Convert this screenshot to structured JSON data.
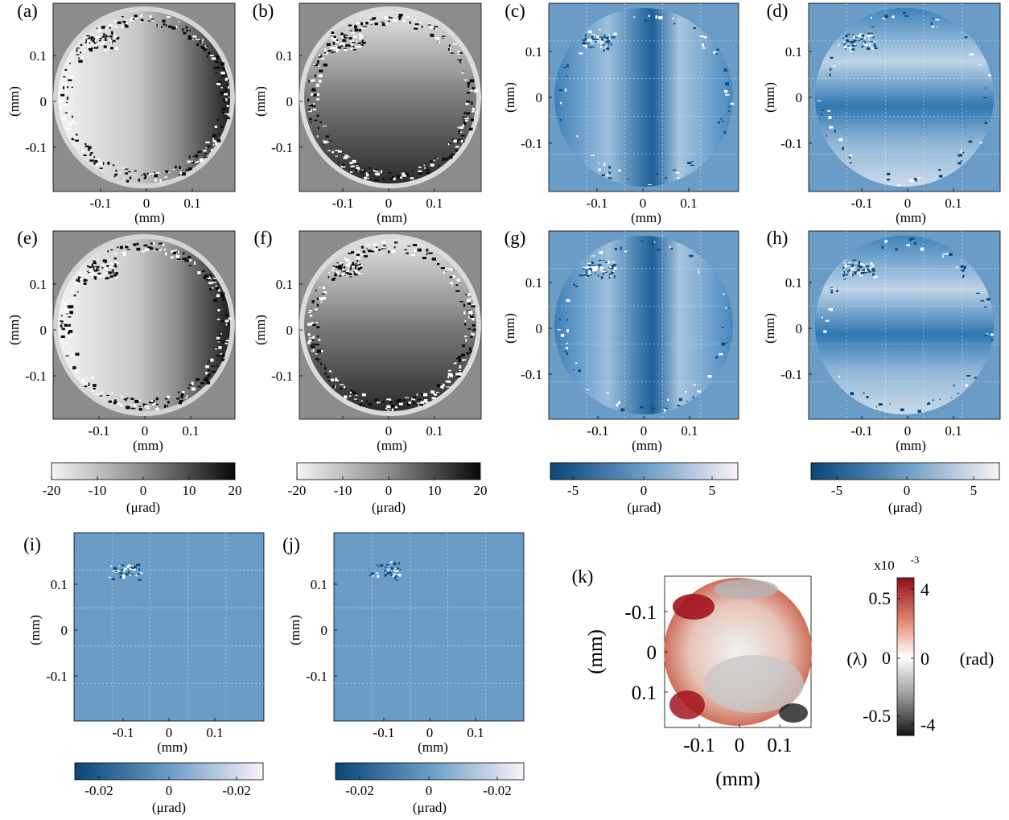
{
  "colors": {
    "blue_bg": "#6a9cc6",
    "blue_dark": "#0b4a80",
    "blue_light": "#f7eef6",
    "gray_light": "#f4f4f4",
    "gray_dark": "#101010",
    "red_dark": "#a3141f",
    "white": "#ffffff",
    "black": "#000000"
  },
  "panel_labels": [
    "(a)",
    "(b)",
    "(c)",
    "(d)",
    "(e)",
    "(f)",
    "(g)",
    "(h)",
    "(i)",
    "(j)",
    "(k)"
  ],
  "axis_label": "(mm)",
  "x_ticks": [
    "-0.1",
    "0",
    "0.1"
  ],
  "y_ticks": [
    "0.1",
    "0",
    "-0.1"
  ],
  "k_y_ticks": [
    "-0.1",
    "0",
    "0.1"
  ],
  "colorbar_unit": "(μrad)",
  "gray_colorbar_ticks": [
    "-20",
    "-10",
    "0",
    "10",
    "20"
  ],
  "blue_colorbar_ticks": [
    "-5",
    "0",
    "5"
  ],
  "small_colorbar_ticks": [
    "-0.02",
    "0",
    "-0.02"
  ],
  "k_colorbar": {
    "exponent_base": "x10",
    "exponent_power": "-3",
    "left_ticks": [
      "0.5",
      "0",
      "-0.5"
    ],
    "left_unit": "(λ)",
    "right_ticks": [
      "4",
      "0",
      "-4"
    ],
    "right_unit": "(rad)"
  }
}
